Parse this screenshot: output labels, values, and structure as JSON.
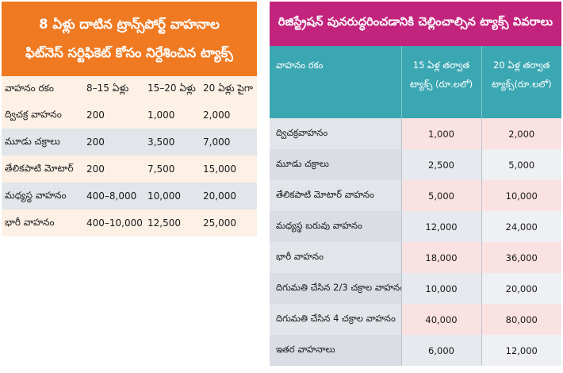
{
  "left_table": {
    "title_line1": "8 ఏళ్లు దాటిన ట్రాన్స్‌పోర్ట్ వాహనాల",
    "title_line2": "ఫిట్‌నెస్ సర్టిఫికెట్ కోసం నిర్దేశించిన ట్యాక్స్",
    "headers": [
      "వాహనం రకం",
      "8–15 ఏళ్లు",
      "15–20 ఏళ్లు",
      "20 ఏళ్లు పైగా"
    ],
    "rows": [
      [
        "ద్విచక్ర వాహనం",
        "200",
        "1,000",
        "2,000"
      ],
      [
        "మూడు చక్రాలు",
        "200",
        "3,500",
        "7,000"
      ],
      [
        "తేలికపాటి మోటార్",
        "200",
        "7,500",
        "15,000"
      ],
      [
        "మధ్యస్థ వాహనం",
        "400–8,000",
        "10,000",
        "20,000"
      ],
      [
        "భారీ వాహనం",
        "400–10,000",
        "12,500",
        "25,000"
      ]
    ]
  },
  "right_table": {
    "title": "రిజిస్ట్రేషన్ పునరుద్ధరించడానికి చెల్లించాల్సిన ట్యాక్స్ వివరాలు",
    "headers": [
      {
        "line1": "వాహనం రకం",
        "line2": ""
      },
      {
        "line1": "15 ఏళ్ల తర్వాత",
        "line2": "ట్యాక్స్ (రూ.లలో)"
      },
      {
        "line1": "20 ఏళ్ల తర్వాత",
        "line2": "ట్యాక్స్(రూ.లలో)"
      }
    ],
    "rows": [
      [
        "ద్విచక్రవాహనం",
        "1,000",
        "2,000"
      ],
      [
        "మూడు చక్రాలు",
        "2,500",
        "5,000"
      ],
      [
        "తేలికపాటి మోటార్ వాహనం",
        "5,000",
        "10,000"
      ],
      [
        "మధ్యస్థ బరువు వాహనం",
        "12,000",
        "24,000"
      ],
      [
        "భారీ వాహనం",
        "18,000",
        "36,000"
      ],
      [
        "దిగుమతి చేసిన 2/3 చక్రాల వాహనం",
        "10,000",
        "20,000"
      ],
      [
        "దిగుమతి చేసిన 4 చక్రాల వాహనం",
        "40,000",
        "80,000"
      ],
      [
        "ఇతర వాహనాలు",
        "6,000",
        "12,000"
      ]
    ]
  },
  "colors": {
    "left_header": "#ef7a22",
    "right_header": "#c2237d",
    "right_column_header": "#3aa7b2"
  }
}
